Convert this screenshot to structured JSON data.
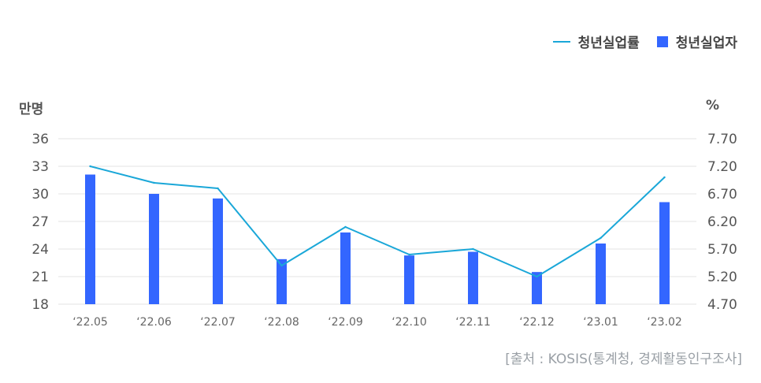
{
  "legend": {
    "line_label": "청년실업률",
    "bar_label": "청년실업자"
  },
  "units": {
    "left": "만명",
    "right": "%"
  },
  "source": "[출처 : KOSIS(통계청, 경제활동인구조사]",
  "colors": {
    "line": "#1aa7d8",
    "bar": "#3366ff",
    "grid": "#e3e3e3",
    "tick_text": "#555555"
  },
  "chart_data": {
    "type": "bar",
    "categories": [
      "‘22.05",
      "‘22.06",
      "‘22.07",
      "‘22.08",
      "‘22.09",
      "‘22.10",
      "‘22.11",
      "‘22.12",
      "‘23.01",
      "‘23.02"
    ],
    "series": [
      {
        "name": "청년실업자",
        "type": "bar",
        "axis": "left",
        "values": [
          32.1,
          30.0,
          29.5,
          22.9,
          25.8,
          23.3,
          23.7,
          21.5,
          24.6,
          29.1
        ]
      },
      {
        "name": "청년실업률",
        "type": "line",
        "axis": "right",
        "values": [
          7.2,
          6.9,
          6.8,
          5.4,
          6.1,
          5.6,
          5.7,
          5.2,
          5.9,
          7.0
        ]
      }
    ],
    "y_left": {
      "ticks": [
        "36",
        "33",
        "30",
        "27",
        "24",
        "21",
        "18"
      ],
      "range": [
        18,
        36
      ]
    },
    "y_right": {
      "ticks": [
        "7.70",
        "7.20",
        "6.70",
        "6.20",
        "5.70",
        "5.20",
        "4.70"
      ],
      "range": [
        4.7,
        7.7
      ]
    },
    "grid": true,
    "legend_position": "top-right"
  }
}
